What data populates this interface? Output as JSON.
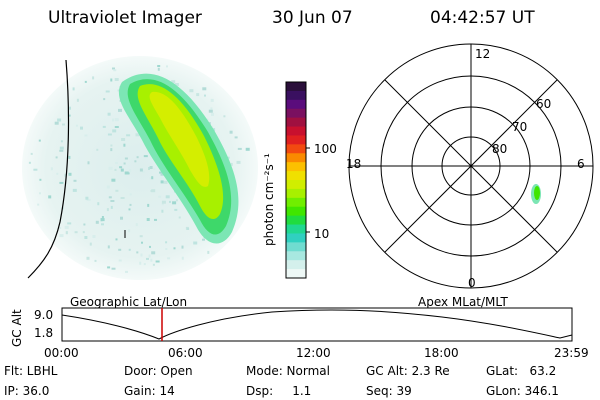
{
  "header": {
    "instrument": "Ultraviolet Imager",
    "date": "30 Jun 07",
    "time": "04:42:57 UT"
  },
  "colorbar": {
    "unit_label": "photon cm⁻²s⁻¹",
    "tick_labels": [
      "100",
      "10"
    ],
    "colors": [
      "#2a0f3a",
      "#3a1060",
      "#5a0c7c",
      "#7a1060",
      "#a01040",
      "#c8102e",
      "#e02020",
      "#f24a10",
      "#fa8a00",
      "#fcc000",
      "#f0e000",
      "#d0ee00",
      "#a8f000",
      "#70ee00",
      "#40e600",
      "#20dc40",
      "#20d890",
      "#30d0c0",
      "#70dcd0",
      "#a8e8e0",
      "#d4f0ec",
      "#eef8f6"
    ]
  },
  "polar_plot": {
    "mlt_labels": [
      "12",
      "18",
      "6",
      "0"
    ],
    "lat_labels": [
      "60",
      "70",
      "80"
    ]
  },
  "timeline": {
    "ylabel": "GC Alt",
    "y_ticks": [
      "9.0",
      "1.8"
    ],
    "left_title": "Geographic Lat/Lon",
    "right_title": "Apex  MLat/MLT",
    "x_ticks": [
      "00:00",
      "06:00",
      "12:00",
      "18:00",
      "23:59"
    ],
    "current_time_fraction": 0.196,
    "marker_color": "#cc0000"
  },
  "info": {
    "filter": "Flt: LBHL",
    "ip": "IP: 36.0",
    "door": "Door: Open",
    "gain": "Gain: 14",
    "mode": "Mode: Normal",
    "dsp": "Dsp:     1.1",
    "gc_alt": "GC Alt: 2.3 Re",
    "seq": "Seq: 39",
    "glat": "GLat:   63.2",
    "glon": "GLon: 346.1"
  }
}
